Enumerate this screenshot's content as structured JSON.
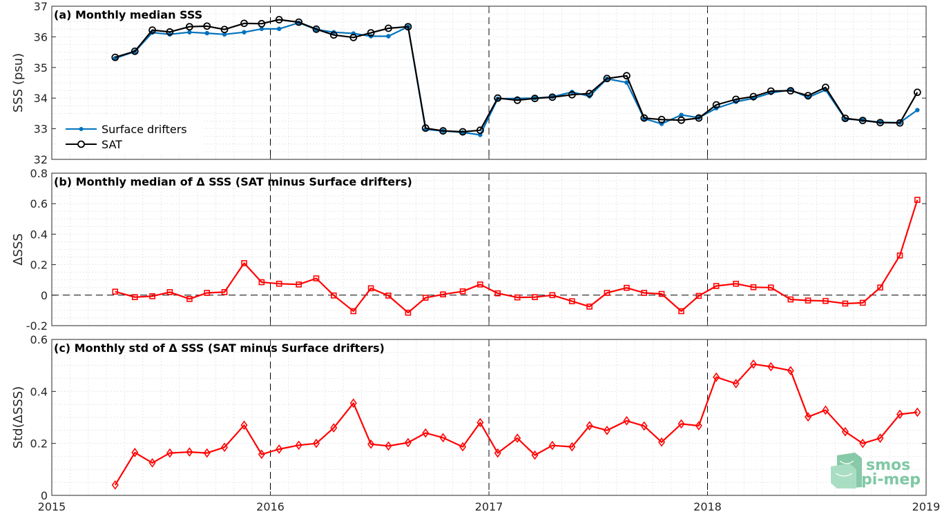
{
  "chart_data": [
    {
      "type": "line",
      "panel": "a",
      "title": "(a) Monthly median SSS",
      "ylabel": "SSS (psu)",
      "xlim": [
        2015,
        2019
      ],
      "ylim": [
        32,
        37
      ],
      "yticks": [
        32,
        33,
        34,
        35,
        36,
        37
      ],
      "xticks": [
        2015,
        2016,
        2017,
        2018,
        2019
      ],
      "grid": "minor dotted, year lines dashed",
      "legend": "bottom-left",
      "x": [
        2015.29,
        2015.38,
        2015.46,
        2015.54,
        2015.63,
        2015.71,
        2015.79,
        2015.88,
        2015.96,
        2016.04,
        2016.13,
        2016.21,
        2016.29,
        2016.38,
        2016.46,
        2016.54,
        2016.63,
        2016.71,
        2016.79,
        2016.88,
        2016.96,
        2017.04,
        2017.13,
        2017.21,
        2017.29,
        2017.38,
        2017.46,
        2017.54,
        2017.63,
        2017.71,
        2017.79,
        2017.88,
        2017.96,
        2018.04,
        2018.13,
        2018.21,
        2018.29,
        2018.38,
        2018.46,
        2018.54,
        2018.63,
        2018.71,
        2018.79,
        2018.88,
        2018.96
      ],
      "series": [
        {
          "name": "Surface drifters",
          "color": "#0072BD",
          "marker": "dot",
          "values": [
            35.3,
            35.52,
            36.14,
            36.08,
            36.15,
            36.12,
            36.08,
            36.15,
            36.26,
            36.26,
            36.46,
            36.24,
            36.15,
            36.11,
            36.02,
            36.02,
            36.33,
            32.98,
            32.93,
            32.88,
            32.8,
            33.98,
            33.99,
            34.0,
            34.04,
            34.2,
            34.06,
            34.63,
            34.51,
            33.33,
            33.16,
            33.45,
            33.36,
            33.67,
            33.88,
            33.99,
            34.17,
            34.27,
            34.02,
            34.27,
            33.32,
            33.28,
            33.21,
            33.2,
            33.61
          ]
        },
        {
          "name": "SAT",
          "color": "#000000",
          "marker": "circle",
          "values": [
            35.33,
            35.53,
            36.22,
            36.16,
            36.33,
            36.35,
            36.24,
            36.44,
            36.43,
            36.56,
            36.48,
            36.25,
            36.06,
            35.98,
            36.13,
            36.28,
            36.33,
            33.02,
            32.93,
            32.9,
            32.95,
            34.0,
            33.93,
            33.99,
            34.03,
            34.11,
            34.15,
            34.64,
            34.73,
            33.35,
            33.3,
            33.28,
            33.35,
            33.78,
            33.96,
            34.05,
            34.23,
            34.24,
            34.08,
            34.35,
            33.34,
            33.27,
            33.2,
            33.19,
            34.19
          ]
        }
      ]
    },
    {
      "type": "line",
      "panel": "b",
      "title": "(b) Monthly median of Δ SSS (SAT minus Surface drifters)",
      "ylabel": "ΔSSS",
      "xlim": [
        2015,
        2019
      ],
      "ylim": [
        -0.2,
        0.8
      ],
      "yticks": [
        -0.2,
        0,
        0.2,
        0.4,
        0.6,
        0.8
      ],
      "ytick_labels": [
        "-0.2",
        "0",
        "0.2",
        "0.4",
        "0.6",
        "0.8"
      ],
      "grid": "minor dotted, year lines dashed, zero line dashed",
      "x": [
        2015.29,
        2015.38,
        2015.46,
        2015.54,
        2015.63,
        2015.71,
        2015.79,
        2015.88,
        2015.96,
        2016.04,
        2016.13,
        2016.21,
        2016.29,
        2016.38,
        2016.46,
        2016.54,
        2016.63,
        2016.71,
        2016.79,
        2016.88,
        2016.96,
        2017.04,
        2017.13,
        2017.21,
        2017.29,
        2017.38,
        2017.46,
        2017.54,
        2017.63,
        2017.71,
        2017.79,
        2017.88,
        2017.96,
        2018.04,
        2018.13,
        2018.21,
        2018.29,
        2018.38,
        2018.46,
        2018.54,
        2018.63,
        2018.71,
        2018.79,
        2018.88,
        2018.96
      ],
      "series": [
        {
          "color": "#FF0000",
          "marker": "square",
          "values": [
            0.023,
            -0.013,
            -0.007,
            0.02,
            -0.025,
            0.015,
            0.02,
            0.21,
            0.085,
            0.075,
            0.07,
            0.11,
            -0.002,
            -0.105,
            0.045,
            -0.003,
            -0.115,
            -0.017,
            0.005,
            0.025,
            0.07,
            0.012,
            -0.015,
            -0.013,
            0.0,
            -0.04,
            -0.075,
            0.015,
            0.048,
            0.015,
            0.008,
            -0.105,
            -0.005,
            0.06,
            0.075,
            0.052,
            0.05,
            -0.028,
            -0.035,
            -0.038,
            -0.055,
            -0.05,
            0.05,
            0.26,
            0.625
          ]
        }
      ]
    },
    {
      "type": "line",
      "panel": "c",
      "title": "(c) Monthly std of Δ SSS (SAT minus Surface drifters)",
      "ylabel": "Std(ΔSSS)",
      "xlim": [
        2015,
        2019
      ],
      "ylim": [
        0,
        0.6
      ],
      "yticks": [
        0,
        0.2,
        0.4,
        0.6
      ],
      "ytick_labels": [
        "0",
        "0.2",
        "0.4",
        "0.6"
      ],
      "xtick_labels": [
        "2015",
        "2016",
        "2017",
        "2018",
        "2019"
      ],
      "grid": "minor dotted, year lines dashed",
      "x": [
        2015.29,
        2015.38,
        2015.46,
        2015.54,
        2015.63,
        2015.71,
        2015.79,
        2015.88,
        2015.96,
        2016.04,
        2016.13,
        2016.21,
        2016.29,
        2016.38,
        2016.46,
        2016.54,
        2016.63,
        2016.71,
        2016.79,
        2016.88,
        2016.96,
        2017.04,
        2017.13,
        2017.21,
        2017.29,
        2017.38,
        2017.46,
        2017.54,
        2017.63,
        2017.71,
        2017.79,
        2017.88,
        2017.96,
        2018.04,
        2018.13,
        2018.21,
        2018.29,
        2018.38,
        2018.46,
        2018.54,
        2018.63,
        2018.71,
        2018.79,
        2018.88,
        2018.96
      ],
      "series": [
        {
          "color": "#FF0000",
          "marker": "diamond",
          "values": [
            0.04,
            0.165,
            0.125,
            0.163,
            0.167,
            0.163,
            0.185,
            0.27,
            0.158,
            0.178,
            0.193,
            0.2,
            0.26,
            0.355,
            0.197,
            0.19,
            0.203,
            0.24,
            0.222,
            0.187,
            0.28,
            0.163,
            0.22,
            0.155,
            0.192,
            0.187,
            0.268,
            0.25,
            0.287,
            0.267,
            0.205,
            0.275,
            0.268,
            0.455,
            0.43,
            0.505,
            0.495,
            0.48,
            0.302,
            0.328,
            0.245,
            0.2,
            0.22,
            0.312,
            0.32
          ]
        }
      ]
    }
  ],
  "logo": {
    "line1": "smos",
    "line2": "pi-mep",
    "color": "#7FC8A4"
  }
}
